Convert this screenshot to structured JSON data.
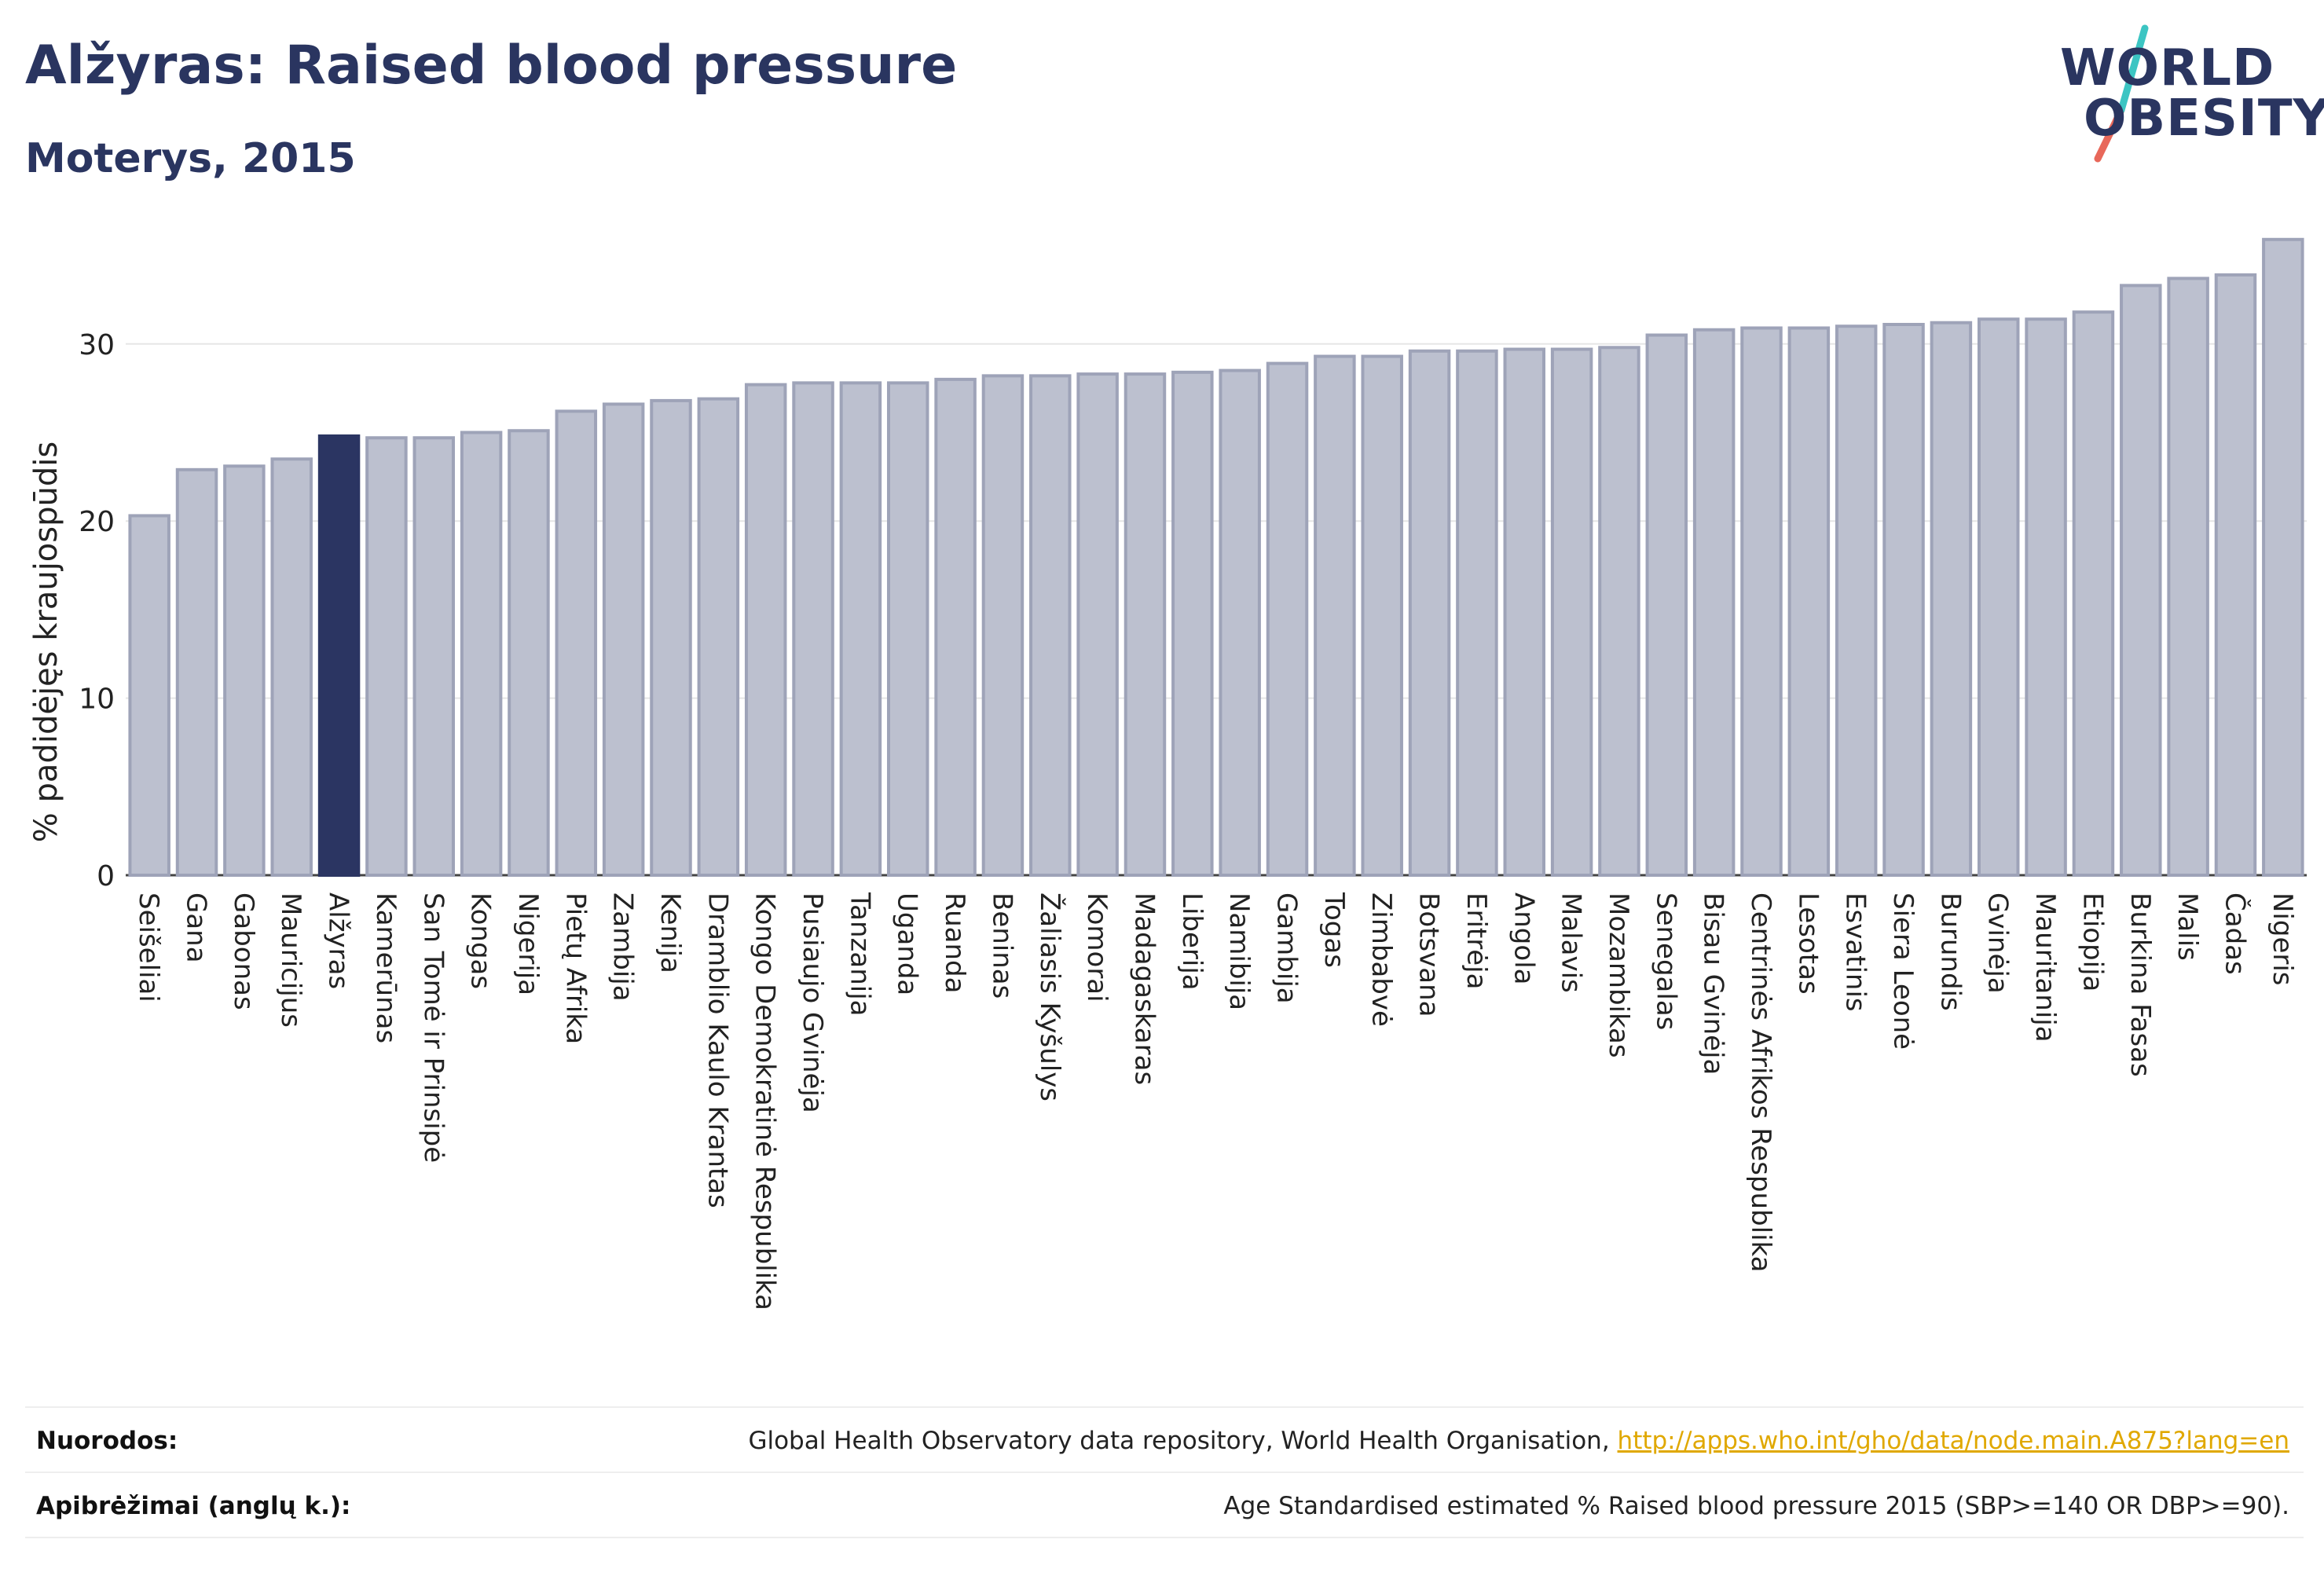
{
  "header": {
    "title": "Alžyras: Raised blood pressure",
    "subtitle": "Moterys, 2015"
  },
  "logo": {
    "line1": "WORLD",
    "line2": "OBESITY",
    "accent_colors": [
      "#3cc5c3",
      "#e8685a"
    ]
  },
  "colors": {
    "bar": "#bcc0cf",
    "bar_stroke": "#9ea3b8",
    "highlight": "#2b3562",
    "grid": "#e6e6e6"
  },
  "chart_data": {
    "type": "bar",
    "title": "",
    "xlabel": "",
    "ylabel": "% padidėjęs kraujospūdis",
    "ylim": [
      0,
      37
    ],
    "yticks": [
      0,
      10,
      20,
      30
    ],
    "grid": true,
    "highlight": "Alžyras",
    "categories": [
      "Seišeliai",
      "Gana",
      "Gabonas",
      "Mauricijus",
      "Alžyras",
      "Kamerūnas",
      "San Tomė ir Prinsipė",
      "Kongas",
      "Nigerija",
      "Pietų Afrika",
      "Zambija",
      "Kenija",
      "Dramblio Kaulo Krantas",
      "Kongo Demokratinė Respublika",
      "Pusiaujo Gvinėja",
      "Tanzanija",
      "Uganda",
      "Ruanda",
      "Beninas",
      "Žaliasis Kyšulys",
      "Komorai",
      "Madagaskaras",
      "Liberija",
      "Namibija",
      "Gambija",
      "Togas",
      "Zimbabvė",
      "Botsvana",
      "Eritrėja",
      "Angola",
      "Malavis",
      "Mozambikas",
      "Senegalas",
      "Bisau Gvinėja",
      "Centrinės Afrikos Respublika",
      "Lesotas",
      "Esvatinis",
      "Siera Leonė",
      "Burundis",
      "Gvinėja",
      "Mauritanija",
      "Etiopija",
      "Burkina Fasas",
      "Malis",
      "Čadas",
      "Nigeris"
    ],
    "values": [
      20.3,
      22.9,
      23.1,
      23.5,
      24.8,
      24.7,
      24.7,
      25.0,
      25.1,
      26.2,
      26.6,
      26.8,
      26.9,
      27.7,
      27.8,
      27.8,
      27.8,
      28.0,
      28.2,
      28.2,
      28.3,
      28.3,
      28.4,
      28.5,
      28.9,
      29.3,
      29.3,
      29.6,
      29.6,
      29.7,
      29.7,
      29.8,
      30.5,
      30.8,
      30.9,
      30.9,
      31.0,
      31.1,
      31.2,
      31.4,
      31.4,
      31.8,
      33.3,
      33.7,
      33.9,
      35.9
    ]
  },
  "footer": {
    "sources_label": "Nuorodos:",
    "sources_text": "Global Health Observatory data repository, World Health Organisation, ",
    "sources_link": "http://apps.who.int/gho/data/node.main.A875?lang=en",
    "definitions_label": "Apibrėžimai (anglų k.):",
    "definitions_text": "Age Standardised estimated % Raised blood pressure 2015 (SBP>=140 OR DBP>=90)."
  }
}
